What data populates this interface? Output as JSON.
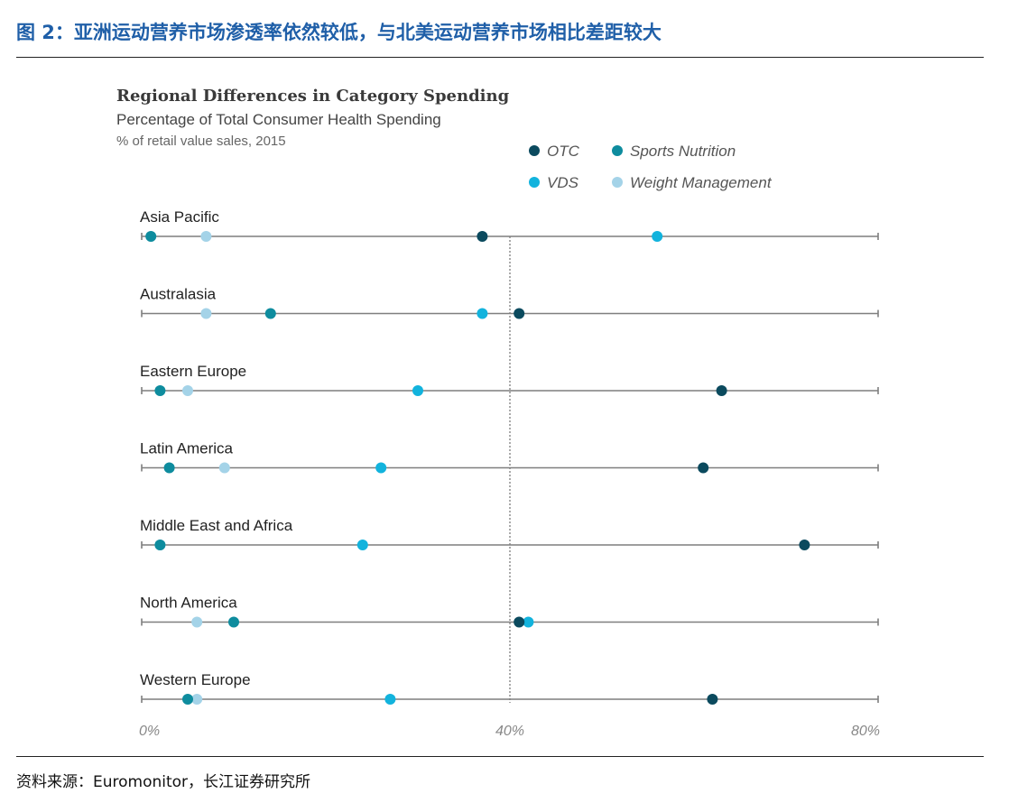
{
  "figure_title": "图 2：亚洲运动营养市场渗透率依然较低，与北美运动营养市场相比差距较大",
  "source": "资料来源：Euromonitor，长江证券研究所",
  "colors": {
    "OTC": "#0b4a5e",
    "Sports Nutrition": "#0e8c9e",
    "VDS": "#12b3dd",
    "Weight Management": "#a4d3e8",
    "line": "#7f7f7f",
    "ref_line": "#555555"
  },
  "chart_data": {
    "type": "scatter",
    "title": "Regional Differences in Category Spending",
    "subtitle": "Percentage of Total Consumer Health Spending",
    "note": "% of retail value sales, 2015",
    "xlim": [
      0,
      80
    ],
    "ticks": [
      "0%",
      "40%",
      "80%"
    ],
    "tick_values": [
      0,
      40,
      80
    ],
    "reference_line": 40,
    "legend": [
      {
        "name": "OTC"
      },
      {
        "name": "Sports Nutrition"
      },
      {
        "name": "VDS"
      },
      {
        "name": "Weight Management"
      }
    ],
    "legend_position": "top-right",
    "categories": [
      "Asia Pacific",
      "Australasia",
      "Eastern Europe",
      "Latin America",
      "Middle East and Africa",
      "North America",
      "Western Europe"
    ],
    "series": [
      {
        "name": "OTC",
        "values": [
          37,
          41,
          63,
          61,
          72,
          41,
          62
        ]
      },
      {
        "name": "Sports Nutrition",
        "values": [
          1,
          14,
          2,
          3,
          2,
          10,
          5
        ]
      },
      {
        "name": "VDS",
        "values": [
          56,
          37,
          30,
          26,
          24,
          42,
          27
        ]
      },
      {
        "name": "Weight Management",
        "values": [
          7,
          7,
          5,
          9,
          2,
          6,
          6
        ]
      }
    ]
  }
}
